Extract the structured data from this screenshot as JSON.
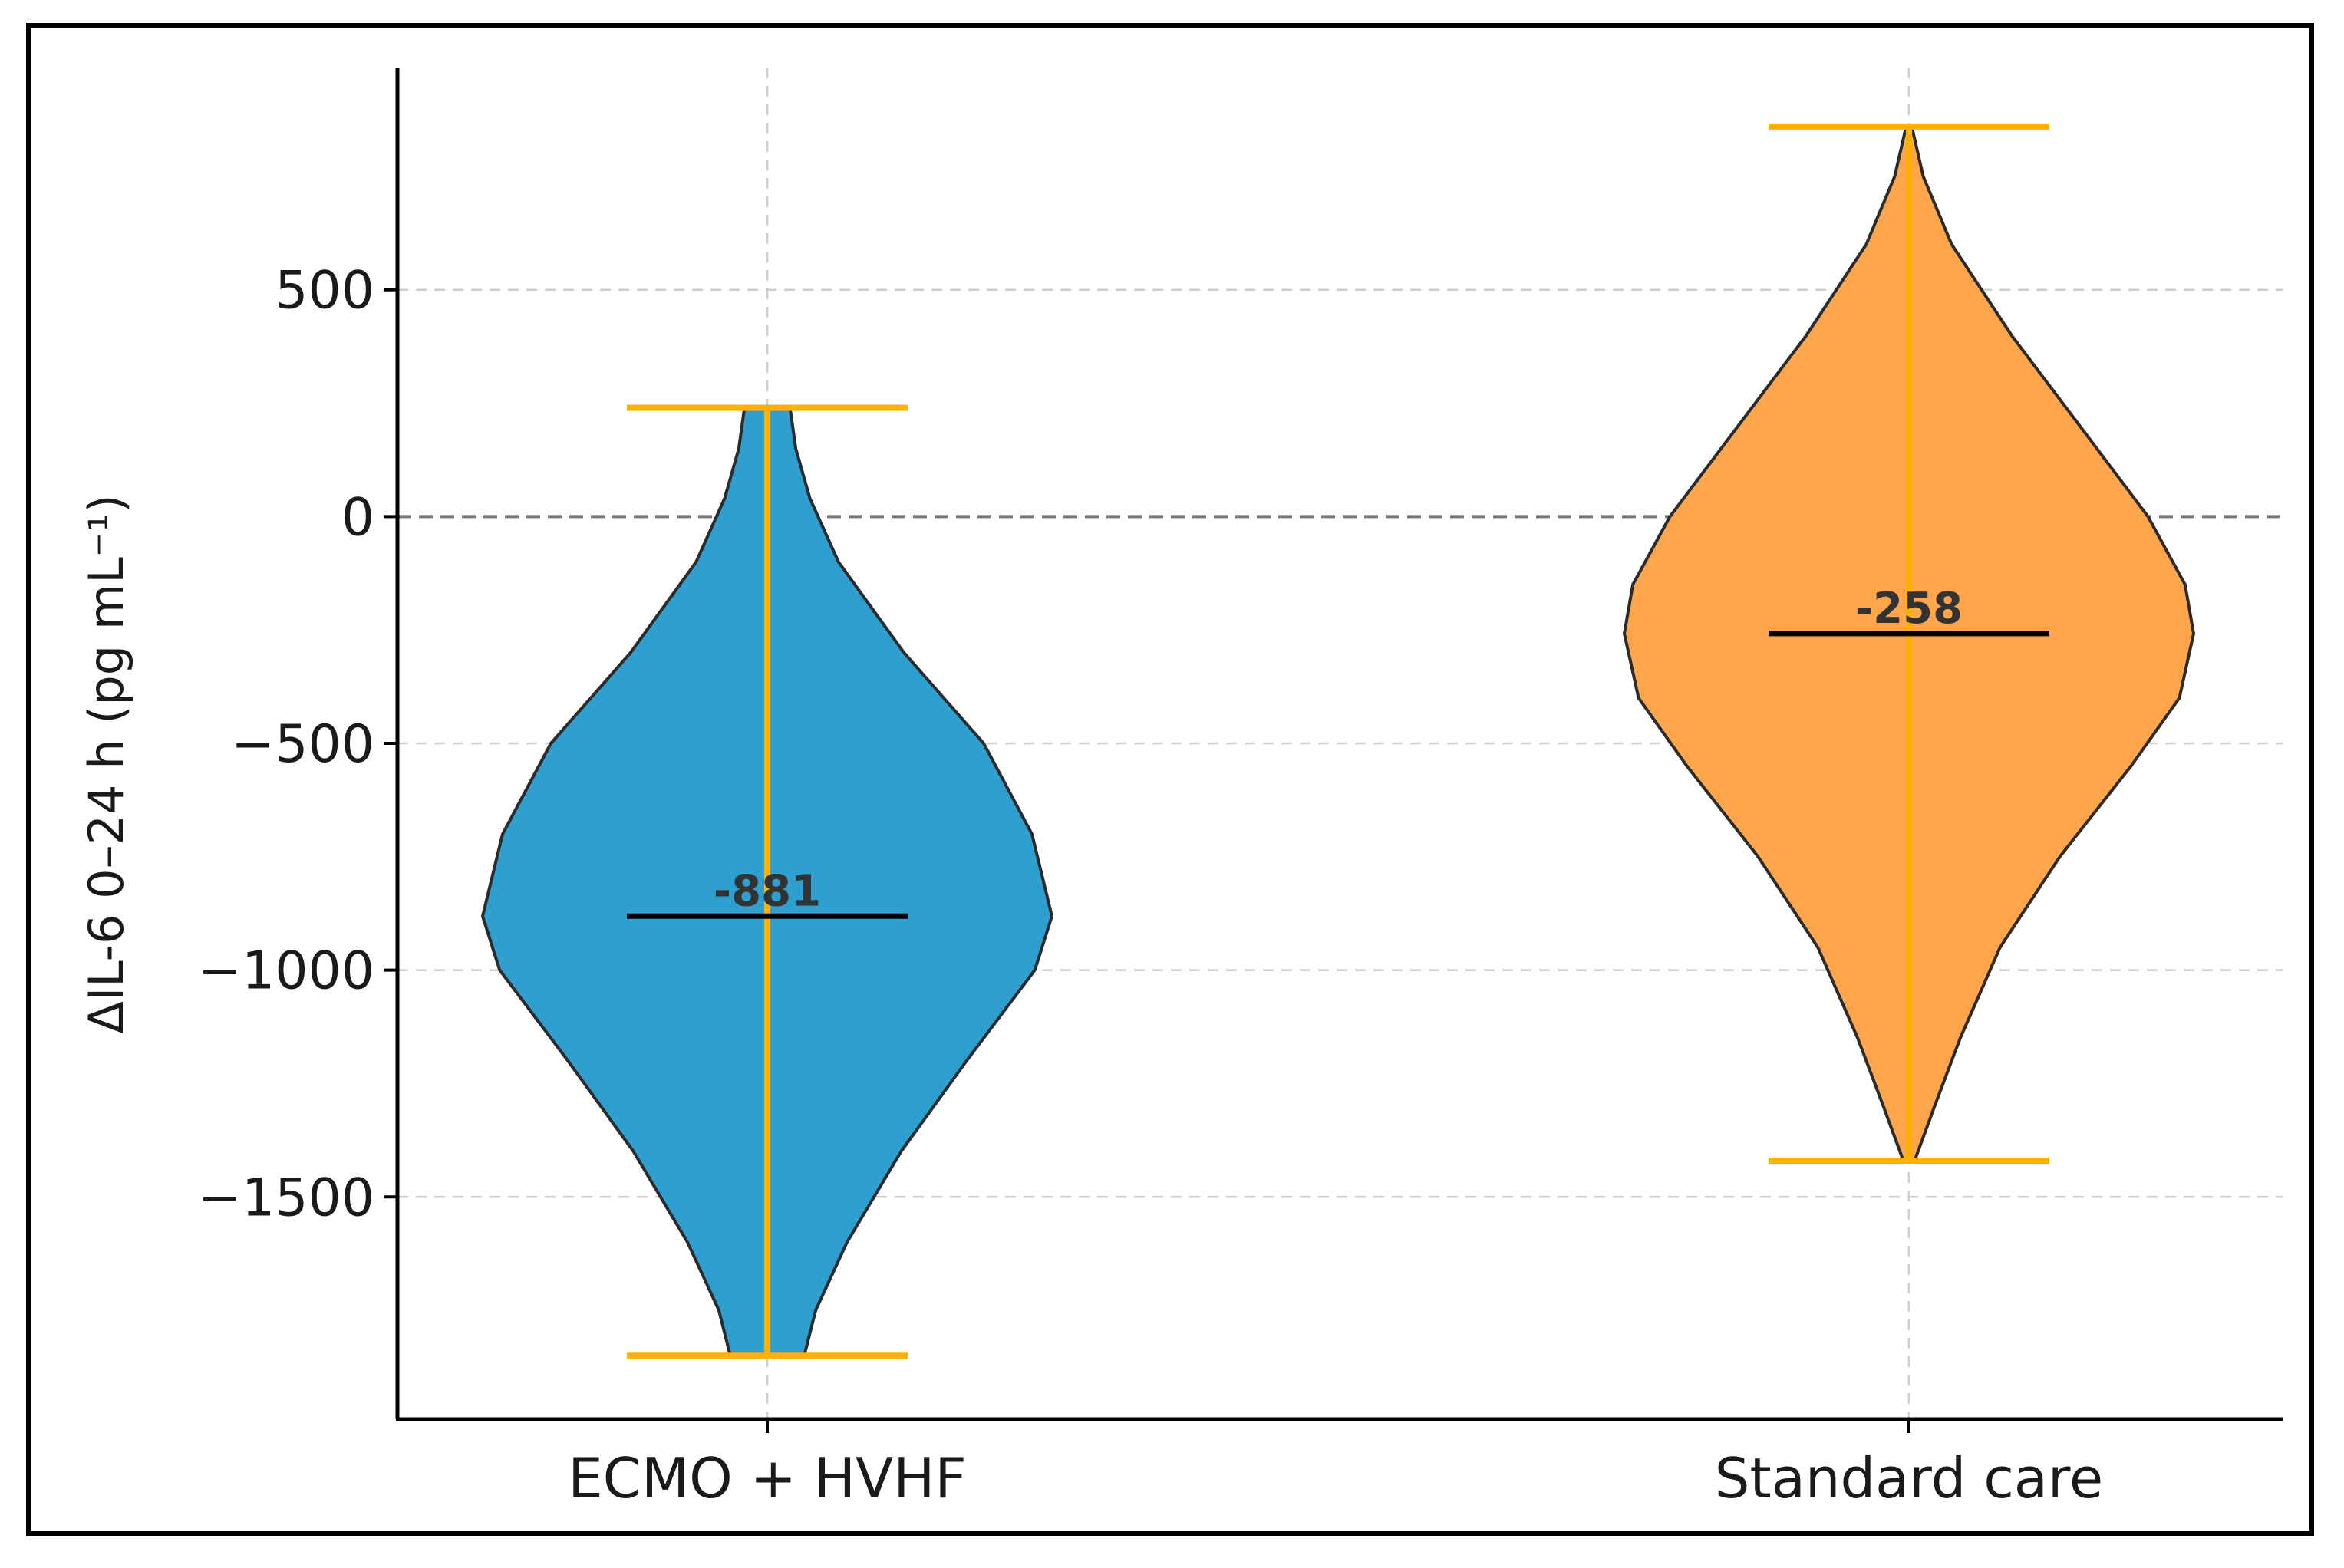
{
  "chart_data": {
    "type": "violin",
    "title": "",
    "xlabel": "",
    "ylabel": "ΔIL-6 0–24 h (pg mL⁻¹)",
    "ylim": [
      -1990,
      990
    ],
    "yticks": [
      500,
      0,
      -500,
      -1000,
      -1500
    ],
    "ytick_labels": [
      "500",
      "0",
      "−500",
      "−1000",
      "−1500"
    ],
    "grid": true,
    "reference_line": 0,
    "categories": [
      "ECMO + HVHF",
      "Standard care"
    ],
    "series": [
      {
        "name": "ECMO + HVHF",
        "color": "#2e9fcf",
        "min": -1850,
        "max": 240,
        "median": -881,
        "median_label": "-881",
        "density": [
          [
            240,
            0.08
          ],
          [
            150,
            0.1
          ],
          [
            40,
            0.15
          ],
          [
            -100,
            0.25
          ],
          [
            -300,
            0.48
          ],
          [
            -500,
            0.76
          ],
          [
            -700,
            0.93
          ],
          [
            -881,
            1.0
          ],
          [
            -1000,
            0.94
          ],
          [
            -1200,
            0.7
          ],
          [
            -1400,
            0.47
          ],
          [
            -1600,
            0.28
          ],
          [
            -1750,
            0.17
          ],
          [
            -1850,
            0.13
          ]
        ]
      },
      {
        "name": "Standard care",
        "color": "#ffa64d",
        "min": -1420,
        "max": 860,
        "median": -258,
        "median_label": "-258",
        "density": [
          [
            860,
            0.01
          ],
          [
            750,
            0.05
          ],
          [
            600,
            0.15
          ],
          [
            400,
            0.36
          ],
          [
            200,
            0.6
          ],
          [
            0,
            0.84
          ],
          [
            -150,
            0.97
          ],
          [
            -258,
            1.0
          ],
          [
            -400,
            0.95
          ],
          [
            -550,
            0.78
          ],
          [
            -750,
            0.53
          ],
          [
            -950,
            0.32
          ],
          [
            -1150,
            0.18
          ],
          [
            -1300,
            0.09
          ],
          [
            -1420,
            0.02
          ]
        ]
      }
    ],
    "whisker_color": "#ffb000",
    "median_color": "#000000"
  }
}
